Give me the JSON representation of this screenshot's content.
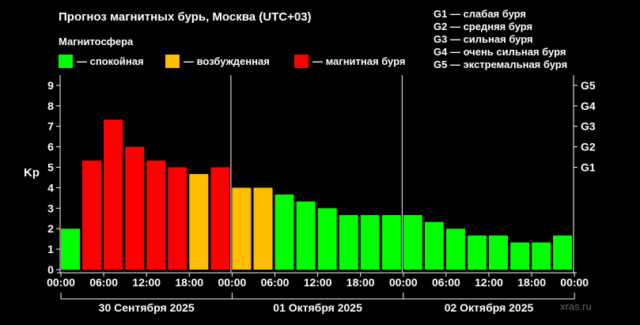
{
  "title": "Прогноз магнитных бурь, Москва (UTC+03)",
  "subtitle": "Магнитосфера",
  "legend": [
    {
      "label": "— спокойная",
      "color": "#00ff00"
    },
    {
      "label": "— возбужденная",
      "color": "#ffbf00"
    },
    {
      "label": "— магнитная буря",
      "color": "#ff0000"
    }
  ],
  "storm_scale": [
    "G1 — слабая буря",
    "G2 — средняя буря",
    "G3 — сильная буря",
    "G4 — очень сильная буря",
    "G5 — экстремальная буря"
  ],
  "watermark": "xras.ru",
  "colors": {
    "quiet": "#00ff00",
    "unsettled": "#ffbf00",
    "storm": "#ff0000",
    "axis": "#ffffff",
    "background": "#000000"
  },
  "chart_data": {
    "type": "bar",
    "ylabel": "Kp",
    "ylim": [
      0,
      9.5
    ],
    "y_ticks": [
      0,
      1,
      2,
      3,
      4,
      5,
      6,
      7,
      8,
      9
    ],
    "right_axis_ticks": [
      {
        "value": 5,
        "label": "G1"
      },
      {
        "value": 6,
        "label": "G2"
      },
      {
        "value": 7,
        "label": "G3"
      },
      {
        "value": 8,
        "label": "G4"
      },
      {
        "value": 9,
        "label": "G5"
      }
    ],
    "x_ticks": [
      "00:00",
      "06:00",
      "12:00",
      "18:00",
      "00:00",
      "06:00",
      "12:00",
      "18:00",
      "00:00",
      "06:00",
      "12:00",
      "18:00",
      "00:00"
    ],
    "days": [
      "30 Сентября 2025",
      "01 Октября 2025",
      "02 Октября 2025"
    ],
    "bars_per_day": 8,
    "categories": [
      "30.09 00:00",
      "30.09 03:00",
      "30.09 06:00",
      "30.09 09:00",
      "30.09 12:00",
      "30.09 15:00",
      "30.09 18:00",
      "30.09 21:00",
      "01.10 00:00",
      "01.10 03:00",
      "01.10 06:00",
      "01.10 09:00",
      "01.10 12:00",
      "01.10 15:00",
      "01.10 18:00",
      "01.10 21:00",
      "02.10 00:00",
      "02.10 03:00",
      "02.10 06:00",
      "02.10 09:00",
      "02.10 12:00",
      "02.10 15:00",
      "02.10 18:00",
      "02.10 21:00"
    ],
    "values": [
      2.0,
      5.33,
      7.33,
      6.0,
      5.33,
      5.0,
      4.67,
      5.0,
      4.0,
      4.0,
      3.67,
      3.33,
      3.0,
      2.67,
      2.67,
      2.67,
      2.67,
      2.33,
      2.0,
      1.67,
      1.67,
      1.33,
      1.33,
      1.67
    ],
    "levels": [
      "quiet",
      "storm",
      "storm",
      "storm",
      "storm",
      "storm",
      "unsettled",
      "storm",
      "unsettled",
      "unsettled",
      "quiet",
      "quiet",
      "quiet",
      "quiet",
      "quiet",
      "quiet",
      "quiet",
      "quiet",
      "quiet",
      "quiet",
      "quiet",
      "quiet",
      "quiet",
      "quiet"
    ]
  }
}
